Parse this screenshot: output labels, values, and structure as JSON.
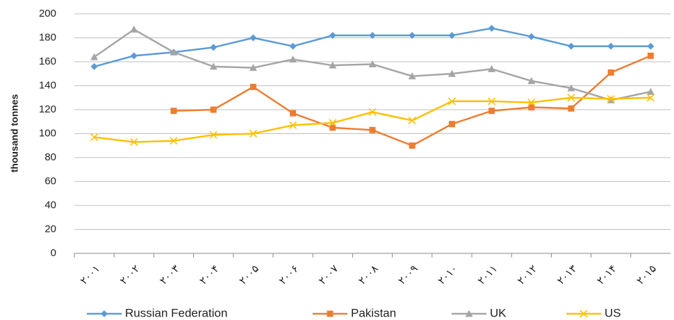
{
  "chart_data": {
    "type": "line",
    "y_label": "thousand tonnes",
    "categories": [
      "۲۰۰۱",
      "۲۰۰۲",
      "۲۰۰۳",
      "۲۰۰۴",
      "۲۰۰۵",
      "۲۰۰۶",
      "۲۰۰۷",
      "۲۰۰۸",
      "۲۰۰۹",
      "۲۰۱۰",
      "۲۰۱۱",
      "۲۰۱۲",
      "۲۰۱۳",
      "۲۰۱۴",
      "۲۰۱۵"
    ],
    "series": [
      {
        "name": "Russian Federation",
        "color": "#5b9bd5",
        "marker": "diamond",
        "values": [
          156,
          165,
          168,
          172,
          180,
          173,
          182,
          182,
          182,
          182,
          188,
          181,
          173,
          173,
          173
        ]
      },
      {
        "name": "Pakistan",
        "color": "#ed7d31",
        "marker": "square",
        "values": [
          null,
          null,
          119,
          120,
          139,
          117,
          105,
          103,
          90,
          108,
          119,
          122,
          121,
          151,
          165
        ]
      },
      {
        "name": "UK",
        "color": "#a5a5a5",
        "marker": "triangle",
        "values": [
          164,
          187,
          168,
          156,
          155,
          162,
          157,
          158,
          148,
          150,
          154,
          144,
          138,
          128,
          135
        ]
      },
      {
        "name": "US",
        "color": "#ffc000",
        "marker": "x",
        "values": [
          97,
          93,
          94,
          99,
          100,
          107,
          109,
          118,
          111,
          127,
          127,
          126,
          130,
          129,
          130
        ]
      }
    ],
    "ylim": [
      0,
      200
    ],
    "yticks": [
      0,
      20,
      40,
      60,
      80,
      100,
      120,
      140,
      160,
      180,
      200
    ],
    "grid": true,
    "legend": "bottom"
  }
}
